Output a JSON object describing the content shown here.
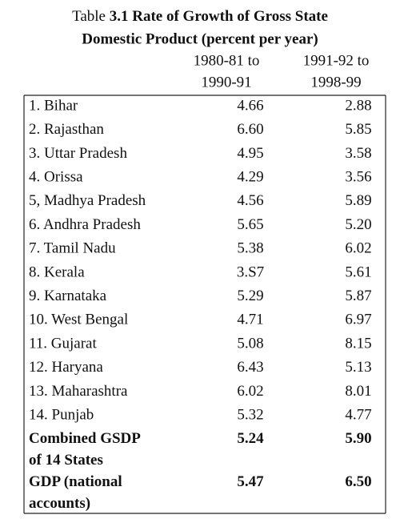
{
  "header": {
    "prefix": "Table",
    "number": "3.1",
    "title_lines": [
      "Rate of Growth of Gross State",
      "Domestic Product (percent per year)"
    ]
  },
  "table": {
    "columns": [
      [
        "1980-81 to",
        "1990-91"
      ],
      [
        "1991-92 to",
        "1998-99"
      ]
    ],
    "rows": [
      [
        "1. Bihar",
        "4.66",
        "2.88"
      ],
      [
        "2. Rajasthan",
        "6.60",
        "5.85"
      ],
      [
        "3. Uttar Pradesh",
        "4.95",
        "3.58"
      ],
      [
        "4. Orissa",
        "4.29",
        "3.56"
      ],
      [
        "5, Madhya Pradesh",
        "4.56",
        "5.89"
      ],
      [
        "6. Andhra Pradesh",
        "5.65",
        "5.20"
      ],
      [
        "7. Tamil Nadu",
        "5.38",
        "6.02"
      ],
      [
        "8. Kerala",
        "3.S7",
        "5.61"
      ],
      [
        "9. Karnataka",
        "5.29",
        "5.87"
      ],
      [
        "10. West Bengal",
        "4.71",
        "6.97"
      ],
      [
        "11. Gujarat",
        "5.08",
        "8.15"
      ],
      [
        "12. Haryana",
        "6.43",
        "5.13"
      ],
      [
        "13. Maharashtra",
        "6.02",
        "8.01"
      ],
      [
        "14. Punjab",
        "5.32",
        "4.77"
      ]
    ],
    "totals": [
      {
        "label": [
          "Combined GSDP",
          "of 14 States"
        ],
        "values": [
          "5.24",
          "5.90"
        ]
      },
      {
        "label": [
          "GDP (national",
          "accounts)"
        ],
        "values": [
          "5.47",
          "6.50"
        ]
      }
    ]
  }
}
